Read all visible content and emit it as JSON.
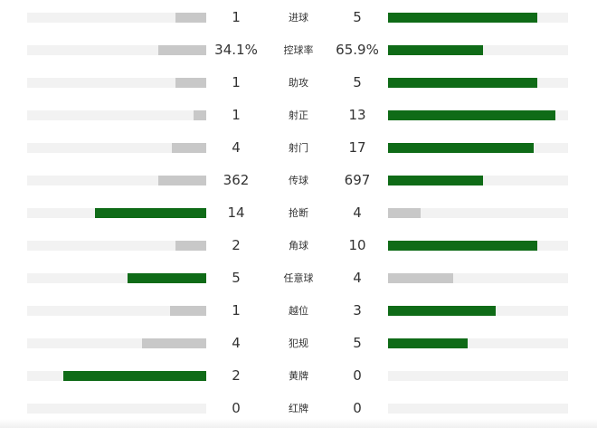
{
  "colors": {
    "winner": "#0f6b17",
    "loser": "#c8c8c8",
    "track": "#f2f2f2"
  },
  "stats": [
    {
      "label": "进球",
      "home": "1",
      "away": "5",
      "home_share": 0.17,
      "away_share": 0.83
    },
    {
      "label": "控球率",
      "home": "34.1%",
      "away": "65.9%",
      "home_share": 0.27,
      "away_share": 0.53
    },
    {
      "label": "助攻",
      "home": "1",
      "away": "5",
      "home_share": 0.17,
      "away_share": 0.83
    },
    {
      "label": "射正",
      "home": "1",
      "away": "13",
      "home_share": 0.07,
      "away_share": 0.93
    },
    {
      "label": "射门",
      "home": "4",
      "away": "17",
      "home_share": 0.19,
      "away_share": 0.81
    },
    {
      "label": "传球",
      "home": "362",
      "away": "697",
      "home_share": 0.27,
      "away_share": 0.53
    },
    {
      "label": "抢断",
      "home": "14",
      "away": "4",
      "home_share": 0.62,
      "away_share": 0.18
    },
    {
      "label": "角球",
      "home": "2",
      "away": "10",
      "home_share": 0.17,
      "away_share": 0.83
    },
    {
      "label": "任意球",
      "home": "5",
      "away": "4",
      "home_share": 0.44,
      "away_share": 0.36
    },
    {
      "label": "越位",
      "home": "1",
      "away": "3",
      "home_share": 0.2,
      "away_share": 0.6
    },
    {
      "label": "犯规",
      "home": "4",
      "away": "5",
      "home_share": 0.36,
      "away_share": 0.44
    },
    {
      "label": "黄牌",
      "home": "2",
      "away": "0",
      "home_share": 0.8,
      "away_share": 0.0
    },
    {
      "label": "红牌",
      "home": "0",
      "away": "0",
      "home_share": 0.0,
      "away_share": 0.0
    }
  ]
}
